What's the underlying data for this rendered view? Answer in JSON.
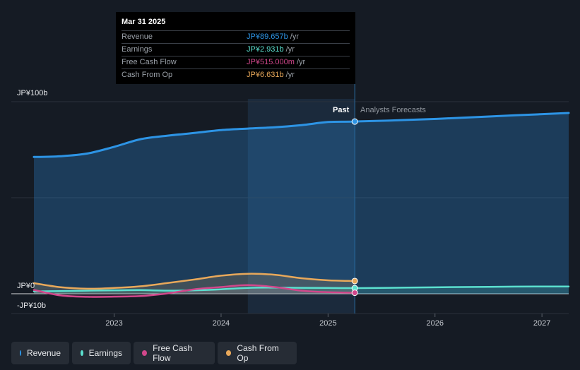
{
  "chart_data": {
    "type": "line",
    "y_axis": {
      "ylim": [
        -10,
        100
      ],
      "tick_labels": [
        "JP¥100b",
        "JP¥0",
        "-JP¥10b"
      ]
    },
    "x_axis": {
      "xlim": [
        2022.25,
        2027.25
      ],
      "ticks": [
        2023,
        2024,
        2025,
        2026,
        2027
      ],
      "tick_labels": [
        "2023",
        "2024",
        "2025",
        "2026",
        "2027"
      ]
    },
    "divider_x": 2025.25,
    "shade_start_x": 2024.25,
    "period_labels": {
      "past": "Past",
      "forecast": "Analysts Forecasts"
    },
    "series": [
      {
        "name": "Revenue",
        "color": "#2d94e5",
        "points": [
          [
            2022.25,
            71.2
          ],
          [
            2022.5,
            71.6
          ],
          [
            2022.75,
            73.0
          ],
          [
            2023.0,
            76.5
          ],
          [
            2023.25,
            80.5
          ],
          [
            2023.5,
            82.3
          ],
          [
            2023.75,
            83.7
          ],
          [
            2024.0,
            85.2
          ],
          [
            2024.25,
            86.0
          ],
          [
            2024.5,
            86.7
          ],
          [
            2024.75,
            87.8
          ],
          [
            2025.0,
            89.4
          ],
          [
            2025.25,
            89.657
          ]
        ],
        "forecast": [
          [
            2025.25,
            89.657
          ],
          [
            2025.75,
            90.5
          ],
          [
            2026.25,
            91.6
          ],
          [
            2026.75,
            92.9
          ],
          [
            2027.25,
            94.1
          ]
        ]
      },
      {
        "name": "Earnings",
        "color": "#5be0cf",
        "points": [
          [
            2022.25,
            1.2
          ],
          [
            2022.5,
            1.4
          ],
          [
            2022.75,
            1.6
          ],
          [
            2023.0,
            1.8
          ],
          [
            2023.25,
            1.9
          ],
          [
            2023.5,
            1.6
          ],
          [
            2023.75,
            1.8
          ],
          [
            2024.0,
            2.3
          ],
          [
            2024.25,
            3.0
          ],
          [
            2024.5,
            3.2
          ],
          [
            2024.75,
            3.1
          ],
          [
            2025.0,
            3.0
          ],
          [
            2025.25,
            2.931
          ]
        ],
        "forecast": [
          [
            2025.25,
            2.931
          ],
          [
            2025.75,
            3.2
          ],
          [
            2026.25,
            3.5
          ],
          [
            2026.75,
            3.7
          ],
          [
            2027.25,
            3.8
          ]
        ]
      },
      {
        "name": "Free Cash Flow",
        "color": "#d1478b",
        "points": [
          [
            2022.25,
            2.0
          ],
          [
            2022.5,
            -0.9
          ],
          [
            2022.75,
            -1.6
          ],
          [
            2023.0,
            -1.5
          ],
          [
            2023.25,
            -1.2
          ],
          [
            2023.5,
            0.2
          ],
          [
            2023.75,
            2.3
          ],
          [
            2024.0,
            3.5
          ],
          [
            2024.25,
            4.5
          ],
          [
            2024.5,
            3.5
          ],
          [
            2024.75,
            1.6
          ],
          [
            2025.0,
            0.8
          ],
          [
            2025.25,
            0.515
          ]
        ]
      },
      {
        "name": "Cash From Op",
        "color": "#e8a85a",
        "points": [
          [
            2022.25,
            5.5
          ],
          [
            2022.5,
            3.4
          ],
          [
            2022.75,
            2.6
          ],
          [
            2023.0,
            3.0
          ],
          [
            2023.25,
            3.9
          ],
          [
            2023.5,
            5.6
          ],
          [
            2023.75,
            7.4
          ],
          [
            2024.0,
            9.4
          ],
          [
            2024.25,
            10.4
          ],
          [
            2024.5,
            9.9
          ],
          [
            2024.75,
            8.1
          ],
          [
            2025.0,
            7.0
          ],
          [
            2025.25,
            6.631
          ]
        ]
      }
    ]
  },
  "tooltip": {
    "date": "Mar 31 2025",
    "rows": [
      {
        "label": "Revenue",
        "value": "JP¥89.657b",
        "unit": " /yr",
        "color": "#2d94e5"
      },
      {
        "label": "Earnings",
        "value": "JP¥2.931b",
        "unit": " /yr",
        "color": "#5be0cf"
      },
      {
        "label": "Free Cash Flow",
        "value": "JP¥515.000m",
        "unit": " /yr",
        "color": "#d1478b"
      },
      {
        "label": "Cash From Op",
        "value": "JP¥6.631b",
        "unit": " /yr",
        "color": "#e8a85a"
      }
    ]
  },
  "legend": [
    {
      "label": "Revenue",
      "color": "#2d94e5"
    },
    {
      "label": "Earnings",
      "color": "#5be0cf"
    },
    {
      "label": "Free Cash Flow",
      "color": "#d1478b"
    },
    {
      "label": "Cash From Op",
      "color": "#e8a85a"
    }
  ]
}
